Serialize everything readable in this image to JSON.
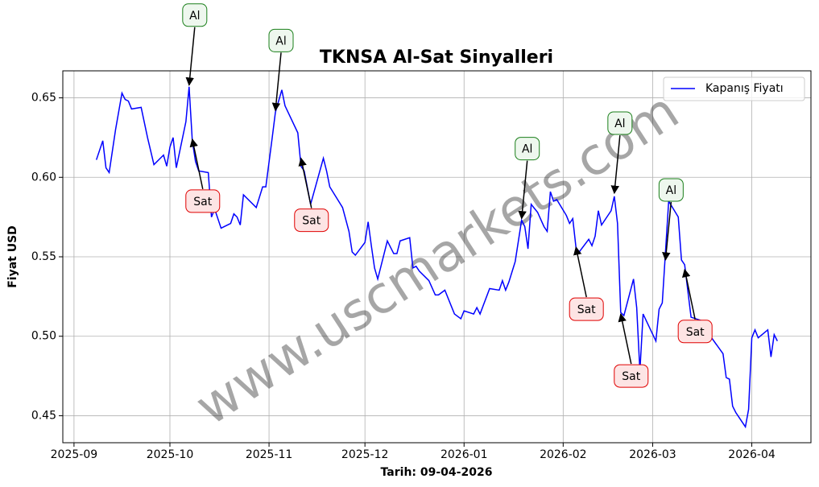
{
  "chart_data": {
    "type": "line",
    "title": "TKNSA Al-Sat Sinyalleri",
    "xlabel": "Tarih: 09-04-2026",
    "ylabel": "Fiyat USD",
    "watermark": "www.uscmarkets.com",
    "legend": "upper right",
    "grid": true,
    "x": [
      7,
      9,
      10,
      11,
      13,
      15,
      16,
      17,
      18,
      21,
      23,
      25,
      28,
      29,
      30,
      31,
      32,
      35,
      36,
      37,
      38,
      39,
      42,
      43,
      44,
      46,
      49,
      50,
      51,
      52,
      53,
      57,
      59,
      60,
      62,
      63,
      65,
      66,
      70,
      71,
      72,
      74,
      78,
      79,
      80,
      84,
      86,
      87,
      88,
      91,
      92,
      93,
      94,
      95,
      98,
      100,
      101,
      102,
      105,
      106,
      107,
      108,
      111,
      113,
      114,
      116,
      119,
      121,
      122,
      125,
      126,
      127,
      130,
      133,
      134,
      135,
      136,
      138,
      140,
      141,
      142,
      143,
      145,
      147,
      148,
      149,
      150,
      151,
      154,
      155,
      156,
      157,
      158,
      161,
      162,
      163,
      164,
      165,
      168,
      169,
      170,
      171,
      172,
      175,
      176,
      177,
      178,
      182,
      183,
      184,
      186,
      189,
      190,
      191,
      193,
      196,
      198,
      203,
      204,
      205,
      206,
      207,
      208,
      210,
      211,
      212,
      213,
      214,
      217,
      218,
      219,
      220
    ],
    "series": [
      {
        "name": "Kapanış Fiyatı",
        "color": "#0000ff",
        "values": [
          0.611,
          0.623,
          0.606,
          0.603,
          0.63,
          0.653,
          0.649,
          0.648,
          0.643,
          0.644,
          0.625,
          0.608,
          0.614,
          0.607,
          0.619,
          0.625,
          0.606,
          0.635,
          0.657,
          0.623,
          0.61,
          0.604,
          0.603,
          0.575,
          0.58,
          0.568,
          0.571,
          0.577,
          0.575,
          0.57,
          0.589,
          0.581,
          0.594,
          0.594,
          0.625,
          0.641,
          0.655,
          0.645,
          0.628,
          0.607,
          0.604,
          0.583,
          0.612,
          0.604,
          0.594,
          0.581,
          0.566,
          0.553,
          0.551,
          0.559,
          0.572,
          0.557,
          0.543,
          0.536,
          0.56,
          0.552,
          0.552,
          0.56,
          0.562,
          0.543,
          0.544,
          0.541,
          0.535,
          0.526,
          0.526,
          0.529,
          0.514,
          0.511,
          0.516,
          0.514,
          0.518,
          0.514,
          0.53,
          0.529,
          0.535,
          0.529,
          0.534,
          0.547,
          0.573,
          0.569,
          0.555,
          0.583,
          0.578,
          0.569,
          0.566,
          0.591,
          0.585,
          0.586,
          0.576,
          0.571,
          0.574,
          0.556,
          0.553,
          0.561,
          0.557,
          0.563,
          0.579,
          0.57,
          0.579,
          0.588,
          0.571,
          0.515,
          0.513,
          0.536,
          0.518,
          0.478,
          0.514,
          0.497,
          0.517,
          0.521,
          0.585,
          0.575,
          0.548,
          0.545,
          0.512,
          0.51,
          0.503,
          0.489,
          0.474,
          0.473,
          0.456,
          0.452,
          0.449,
          0.443,
          0.454,
          0.499,
          0.504,
          0.499,
          0.504,
          0.487,
          0.501,
          0.497
        ]
      }
    ],
    "xlim": [
      -3.5,
      230.5
    ],
    "ylim": [
      0.433,
      0.667
    ],
    "xticks": [
      {
        "value": 0,
        "label": "2025-09"
      },
      {
        "value": 30,
        "label": "2025-10"
      },
      {
        "value": 61,
        "label": "2025-11"
      },
      {
        "value": 91,
        "label": "2025-12"
      },
      {
        "value": 122,
        "label": "2026-01"
      },
      {
        "value": 153,
        "label": "2026-02"
      },
      {
        "value": 181,
        "label": "2026-03"
      },
      {
        "value": 212,
        "label": "2026-04"
      }
    ],
    "yticks": [
      0.45,
      {
        "value": 0.5,
        "label": "0.50"
      },
      0.55,
      {
        "value": 0.6,
        "label": "0.60"
      },
      0.65
    ],
    "annotations": [
      {
        "text": "Al",
        "x": 36,
        "y": 0.658
      },
      {
        "text": "Sat",
        "x": 37,
        "y": 0.624
      },
      {
        "text": "Al",
        "x": 63,
        "y": 0.642
      },
      {
        "text": "Sat",
        "x": 71,
        "y": 0.612
      },
      {
        "text": "Al",
        "x": 140,
        "y": 0.574
      },
      {
        "text": "Sat",
        "x": 157,
        "y": 0.556
      },
      {
        "text": "Al",
        "x": 169,
        "y": 0.59
      },
      {
        "text": "Sat",
        "x": 171,
        "y": 0.514
      },
      {
        "text": "Al",
        "x": 185,
        "y": 0.548
      },
      {
        "text": "Sat",
        "x": 191,
        "y": 0.542
      }
    ]
  }
}
